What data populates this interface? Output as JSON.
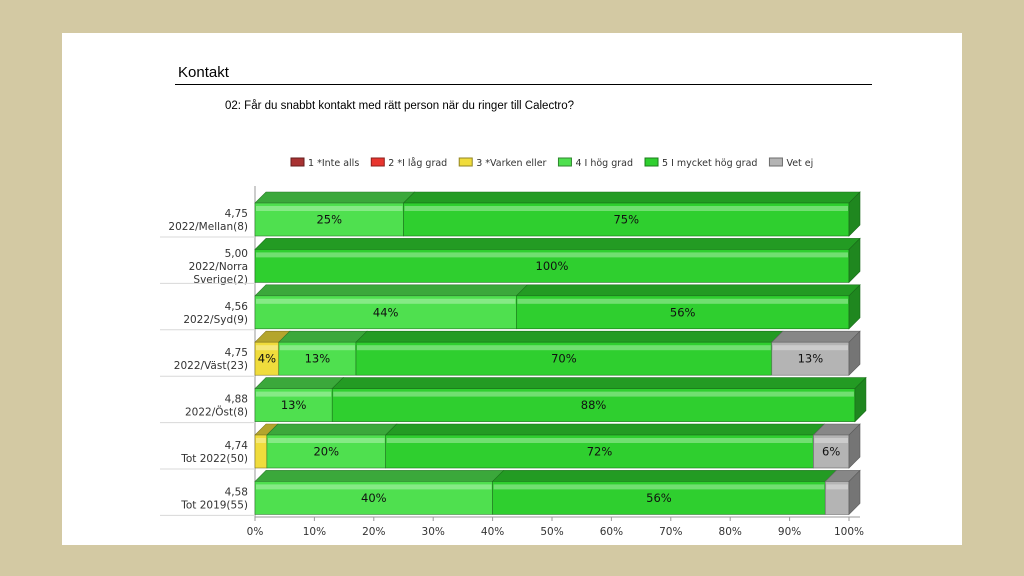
{
  "page": {
    "section_title": "Kontakt",
    "question": "02: Får du snabbt kontakt med rätt person när du ringer till Calectro?"
  },
  "chart_data": {
    "type": "bar",
    "orientation": "horizontal",
    "stacked": true,
    "xlim": [
      0,
      100
    ],
    "x_ticks": [
      "0%",
      "10%",
      "20%",
      "30%",
      "40%",
      "50%",
      "60%",
      "70%",
      "80%",
      "90%",
      "100%"
    ],
    "legend_position": "top",
    "categories": [
      [
        "4,75",
        "2022/Mellan(8)"
      ],
      [
        "5,00",
        "2022/Norra",
        "Sverige(2)"
      ],
      [
        "4,56",
        "2022/Syd(9)"
      ],
      [
        "4,75",
        "2022/Väst(23)"
      ],
      [
        "4,88",
        "2022/Öst(8)"
      ],
      [
        "4,74",
        "Tot 2022(50)"
      ],
      [
        "4,58",
        "Tot 2019(55)"
      ]
    ],
    "series": [
      {
        "name": "1 *Inte alls",
        "color": "#a83232",
        "values": [
          0,
          0,
          0,
          0,
          0,
          0,
          0
        ],
        "labels": [
          "",
          "",
          "",
          "",
          "",
          "",
          ""
        ]
      },
      {
        "name": "2 *I låg grad",
        "color": "#e8352e",
        "values": [
          0,
          0,
          0,
          0,
          0,
          0,
          0
        ],
        "labels": [
          "",
          "",
          "",
          "",
          "",
          "",
          ""
        ]
      },
      {
        "name": "3 *Varken eller",
        "color": "#f0dc3c",
        "values": [
          0,
          0,
          0,
          4,
          0,
          2,
          0
        ],
        "labels": [
          "",
          "",
          "",
          "4%",
          "",
          "",
          ""
        ]
      },
      {
        "name": "4 I hög grad",
        "color": "#4fe04f",
        "values": [
          25,
          0,
          44,
          13,
          13,
          20,
          40
        ],
        "labels": [
          "25%",
          "",
          "44%",
          "13%",
          "13%",
          "20%",
          "40%"
        ]
      },
      {
        "name": "5 I mycket hög grad",
        "color": "#2fcf2f",
        "values": [
          75,
          100,
          56,
          70,
          88,
          72,
          56
        ],
        "labels": [
          "75%",
          "100%",
          "56%",
          "70%",
          "88%",
          "72%",
          "56%"
        ]
      },
      {
        "name": "Vet ej",
        "color": "#b4b4b4",
        "values": [
          0,
          0,
          0,
          13,
          0,
          6,
          4
        ],
        "labels": [
          "",
          "",
          "",
          "13%",
          "",
          "6%",
          ""
        ]
      }
    ]
  }
}
